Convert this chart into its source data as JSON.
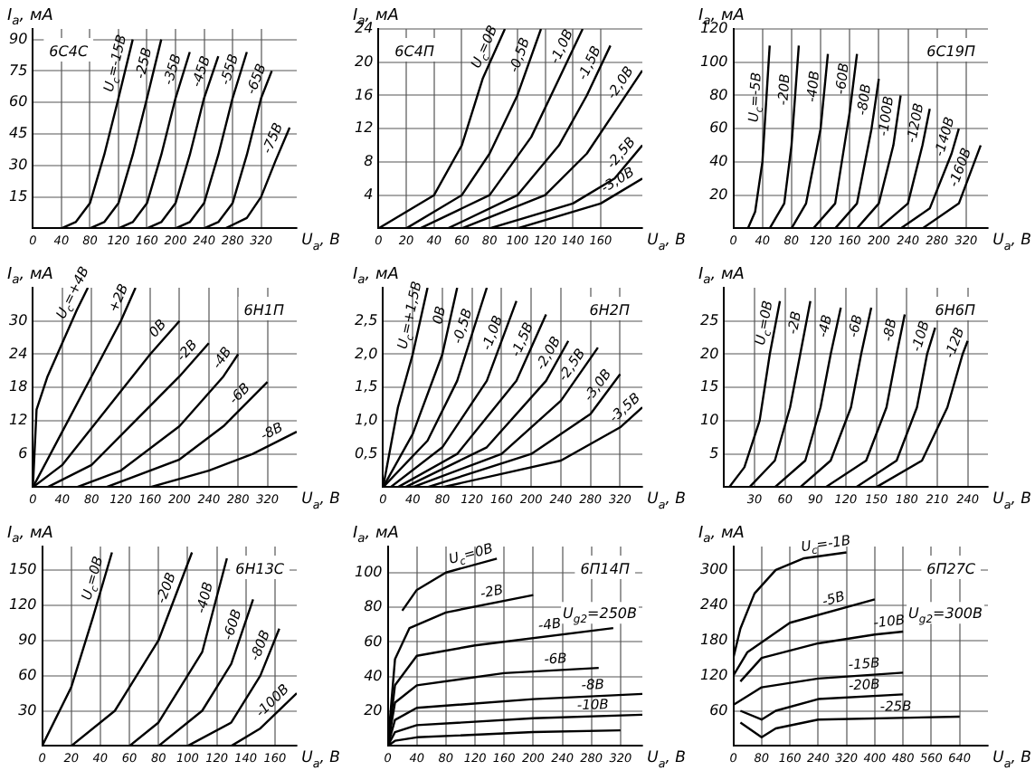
{
  "chart_data": [
    {
      "type": "line",
      "title": "6С4С",
      "xlabel": "U$_{a}$, В",
      "ylabel": "I$_{a}$, мА",
      "xlim": [
        0,
        370
      ],
      "xticks": [
        0,
        40,
        80,
        120,
        160,
        200,
        240,
        280,
        320
      ],
      "ylim": [
        0,
        95
      ],
      "yticks": [
        15,
        30,
        45,
        60,
        75,
        90
      ],
      "grid": true,
      "legend": false,
      "series": [
        {
          "name": "U$_{c}$=-15В",
          "color": "#000000",
          "x": [
            40,
            60,
            80,
            100,
            120,
            140
          ],
          "values": [
            0,
            3,
            12,
            35,
            62,
            90
          ]
        },
        {
          "name": "-25В",
          "color": "#000000",
          "x": [
            80,
            100,
            120,
            140,
            160,
            180
          ],
          "values": [
            0,
            3,
            12,
            35,
            62,
            90
          ]
        },
        {
          "name": "-35В",
          "color": "#000000",
          "x": [
            120,
            140,
            160,
            180,
            200,
            220
          ],
          "values": [
            0,
            3,
            12,
            35,
            62,
            84
          ]
        },
        {
          "name": "-45В",
          "color": "#000000",
          "x": [
            160,
            180,
            200,
            220,
            240,
            260
          ],
          "values": [
            0,
            3,
            12,
            35,
            62,
            82
          ]
        },
        {
          "name": "-55В",
          "color": "#000000",
          "x": [
            200,
            220,
            240,
            260,
            280,
            300
          ],
          "values": [
            0,
            3,
            12,
            35,
            62,
            84
          ]
        },
        {
          "name": "-65В",
          "color": "#000000",
          "x": [
            240,
            260,
            280,
            300,
            320,
            335
          ],
          "values": [
            0,
            3,
            12,
            35,
            62,
            75
          ]
        },
        {
          "name": "-75В",
          "color": "#000000",
          "x": [
            270,
            300,
            320,
            340,
            360
          ],
          "values": [
            0,
            5,
            15,
            32,
            48
          ]
        }
      ]
    },
    {
      "type": "line",
      "title": "6С4П",
      "xlabel": "U$_{a}$, В",
      "ylabel": "I$_{a}$, мА",
      "xlim": [
        0,
        190
      ],
      "xticks": [
        0,
        20,
        40,
        60,
        80,
        100,
        120,
        140,
        160
      ],
      "ylim": [
        0,
        24
      ],
      "yticks": [
        4,
        8,
        12,
        16,
        20,
        24
      ],
      "grid": true,
      "legend": false,
      "series": [
        {
          "name": "U$_{c}$=0В",
          "color": "#000000",
          "x": [
            0,
            40,
            60,
            75,
            91
          ],
          "values": [
            0,
            4,
            10,
            18,
            24
          ]
        },
        {
          "name": "-0,5В",
          "color": "#000000",
          "x": [
            20,
            60,
            80,
            100,
            117
          ],
          "values": [
            0,
            4,
            9,
            16,
            24
          ]
        },
        {
          "name": "-1,0В",
          "color": "#000000",
          "x": [
            30,
            80,
            110,
            130,
            147
          ],
          "values": [
            0,
            4,
            11,
            18,
            24
          ]
        },
        {
          "name": "-1,5В",
          "color": "#000000",
          "x": [
            50,
            100,
            130,
            150,
            167
          ],
          "values": [
            0,
            4,
            10,
            16,
            22
          ]
        },
        {
          "name": "-2,0В",
          "color": "#000000",
          "x": [
            60,
            120,
            150,
            170,
            190
          ],
          "values": [
            0,
            4,
            9,
            14,
            19
          ]
        },
        {
          "name": "-2,5В",
          "color": "#000000",
          "x": [
            80,
            140,
            170,
            190
          ],
          "values": [
            0,
            3,
            6,
            10
          ]
        },
        {
          "name": "-3,0В",
          "color": "#000000",
          "x": [
            100,
            160,
            190
          ],
          "values": [
            0,
            3,
            6
          ]
        }
      ]
    },
    {
      "type": "line",
      "title": "6С19П",
      "xlabel": "U$_{a}$, В",
      "ylabel": "I$_{a}$, мА",
      "xlim": [
        0,
        350
      ],
      "xticks": [
        0,
        40,
        80,
        120,
        160,
        200,
        240,
        280,
        320
      ],
      "ylim": [
        0,
        120
      ],
      "yticks": [
        20,
        40,
        60,
        80,
        100,
        120
      ],
      "grid": true,
      "legend": false,
      "series": [
        {
          "name": "U$_{c}$=-5В",
          "color": "#000000",
          "x": [
            20,
            30,
            40,
            50
          ],
          "values": [
            0,
            10,
            40,
            110
          ]
        },
        {
          "name": "-20В",
          "color": "#000000",
          "x": [
            50,
            70,
            80,
            90
          ],
          "values": [
            0,
            15,
            50,
            110
          ]
        },
        {
          "name": "-40В",
          "color": "#000000",
          "x": [
            80,
            100,
            120,
            130
          ],
          "values": [
            0,
            15,
            60,
            105
          ]
        },
        {
          "name": "-60В",
          "color": "#000000",
          "x": [
            110,
            140,
            160,
            170
          ],
          "values": [
            0,
            15,
            70,
            105
          ]
        },
        {
          "name": "-80В",
          "color": "#000000",
          "x": [
            140,
            170,
            190,
            200
          ],
          "values": [
            0,
            15,
            60,
            90
          ]
        },
        {
          "name": "-100В",
          "color": "#000000",
          "x": [
            170,
            200,
            220,
            230
          ],
          "values": [
            0,
            15,
            50,
            80
          ]
        },
        {
          "name": "-120В",
          "color": "#000000",
          "x": [
            200,
            240,
            260,
            270
          ],
          "values": [
            0,
            15,
            50,
            72
          ]
        },
        {
          "name": "-140В",
          "color": "#000000",
          "x": [
            230,
            270,
            300,
            310
          ],
          "values": [
            0,
            12,
            45,
            60
          ]
        },
        {
          "name": "-160В",
          "color": "#000000",
          "x": [
            260,
            310,
            340
          ],
          "values": [
            0,
            15,
            50
          ]
        }
      ]
    },
    {
      "type": "line",
      "title": "6Н1П",
      "xlabel": "U$_{a}$, В",
      "ylabel": "I$_{a}$, мА",
      "xlim": [
        0,
        360
      ],
      "xticks": [
        0,
        40,
        80,
        120,
        160,
        200,
        240,
        280,
        320
      ],
      "ylim": [
        0,
        36
      ],
      "yticks": [
        6,
        12,
        18,
        24,
        30
      ],
      "grid": true,
      "legend": false,
      "series": [
        {
          "name": "U$_{c}$=+4В",
          "color": "#000000",
          "x": [
            0,
            5,
            20,
            40,
            60,
            75
          ],
          "values": [
            0,
            14,
            20,
            26,
            32,
            36
          ]
        },
        {
          "name": "+2В",
          "color": "#000000",
          "x": [
            0,
            40,
            80,
            120,
            140
          ],
          "values": [
            0,
            10,
            20,
            30,
            36
          ]
        },
        {
          "name": "0В",
          "color": "#000000",
          "x": [
            0,
            40,
            100,
            160,
            200
          ],
          "values": [
            0,
            4,
            14,
            24,
            30
          ]
        },
        {
          "name": "-2В",
          "color": "#000000",
          "x": [
            20,
            80,
            140,
            200,
            240
          ],
          "values": [
            0,
            4,
            12,
            20,
            26
          ]
        },
        {
          "name": "-4В",
          "color": "#000000",
          "x": [
            60,
            120,
            200,
            260,
            280
          ],
          "values": [
            0,
            3,
            11,
            20,
            24
          ]
        },
        {
          "name": "-6В",
          "color": "#000000",
          "x": [
            100,
            200,
            260,
            320
          ],
          "values": [
            0,
            5,
            11,
            19
          ]
        },
        {
          "name": "-8В",
          "color": "#000000",
          "x": [
            160,
            240,
            300,
            360
          ],
          "values": [
            0,
            3,
            6,
            10
          ]
        }
      ]
    },
    {
      "type": "line",
      "title": "6Н2П",
      "xlabel": "U$_{a}$, В",
      "ylabel": "I$_{a}$, мА",
      "xlim": [
        0,
        350
      ],
      "xticks": [
        0,
        40,
        80,
        120,
        160,
        200,
        240,
        280,
        320
      ],
      "ylim": [
        0,
        3
      ],
      "yticks": [
        {
          "value": 0.5,
          "label": "0,5"
        },
        {
          "value": 1,
          "label": "1,0"
        },
        {
          "value": 1.5,
          "label": "1,5"
        },
        {
          "value": 2,
          "label": "2,0"
        },
        {
          "value": 2.5,
          "label": "2,5"
        }
      ],
      "grid": true,
      "legend": false,
      "series": [
        {
          "name": "U$_{c}$=+1,5В",
          "color": "#000000",
          "x": [
            0,
            20,
            40,
            60
          ],
          "values": [
            0,
            1.2,
            2,
            3
          ]
        },
        {
          "name": "0В",
          "color": "#000000",
          "x": [
            0,
            40,
            80,
            100
          ],
          "values": [
            0,
            0.8,
            2,
            3
          ]
        },
        {
          "name": "-0,5В",
          "color": "#000000",
          "x": [
            0,
            60,
            100,
            140
          ],
          "values": [
            0,
            0.7,
            1.6,
            3
          ]
        },
        {
          "name": "-1,0В",
          "color": "#000000",
          "x": [
            10,
            80,
            140,
            180
          ],
          "values": [
            0,
            0.6,
            1.6,
            2.8
          ]
        },
        {
          "name": "-1,5В",
          "color": "#000000",
          "x": [
            20,
            100,
            180,
            220
          ],
          "values": [
            0,
            0.5,
            1.6,
            2.6
          ]
        },
        {
          "name": "-2,0В",
          "color": "#000000",
          "x": [
            30,
            140,
            220,
            250
          ],
          "values": [
            0,
            0.6,
            1.6,
            2.2
          ]
        },
        {
          "name": "-2,5В",
          "color": "#000000",
          "x": [
            40,
            160,
            240,
            290
          ],
          "values": [
            0,
            0.5,
            1.3,
            2.1
          ]
        },
        {
          "name": "-3,0В",
          "color": "#000000",
          "x": [
            60,
            200,
            280,
            320
          ],
          "values": [
            0,
            0.5,
            1.1,
            1.7
          ]
        },
        {
          "name": "-3,5В",
          "color": "#000000",
          "x": [
            80,
            240,
            320,
            350
          ],
          "values": [
            0,
            0.4,
            0.9,
            1.2
          ]
        }
      ]
    },
    {
      "type": "line",
      "title": "6Н6П",
      "xlabel": "U$_{a}$, В",
      "ylabel": "I$_{a}$, мА",
      "xlim": [
        0,
        260
      ],
      "xticks": [
        30,
        60,
        90,
        120,
        150,
        180,
        210,
        240
      ],
      "ylim": [
        0,
        30
      ],
      "yticks": [
        5,
        10,
        15,
        20,
        25
      ],
      "grid": true,
      "legend": false,
      "series": [
        {
          "name": "U$_{c}$=0В",
          "color": "#000000",
          "x": [
            5,
            20,
            35,
            45,
            55
          ],
          "values": [
            0,
            3,
            10,
            20,
            28
          ]
        },
        {
          "name": "-2В",
          "color": "#000000",
          "x": [
            25,
            50,
            65,
            75,
            85
          ],
          "values": [
            0,
            4,
            12,
            20,
            28
          ]
        },
        {
          "name": "-4В",
          "color": "#000000",
          "x": [
            50,
            80,
            95,
            105,
            115
          ],
          "values": [
            0,
            4,
            12,
            20,
            27
          ]
        },
        {
          "name": "-6В",
          "color": "#000000",
          "x": [
            75,
            105,
            125,
            135,
            145
          ],
          "values": [
            0,
            4,
            12,
            20,
            27
          ]
        },
        {
          "name": "-8В",
          "color": "#000000",
          "x": [
            100,
            140,
            160,
            170,
            178
          ],
          "values": [
            0,
            4,
            12,
            20,
            26
          ]
        },
        {
          "name": "-10В",
          "color": "#000000",
          "x": [
            130,
            170,
            190,
            200,
            208
          ],
          "values": [
            0,
            4,
            12,
            20,
            24
          ]
        },
        {
          "name": "-12В",
          "color": "#000000",
          "x": [
            150,
            195,
            220,
            235,
            240
          ],
          "values": [
            0,
            4,
            12,
            20,
            22
          ]
        }
      ]
    },
    {
      "type": "line",
      "title": "6Н13С",
      "xlabel": "U$_{a}$, В",
      "ylabel": "I$_{a}$, мА",
      "xlim": [
        0,
        175
      ],
      "xticks": [
        0,
        20,
        40,
        60,
        80,
        100,
        120,
        140,
        160
      ],
      "ylim": [
        0,
        170
      ],
      "yticks": [
        30,
        60,
        90,
        120,
        150
      ],
      "grid": true,
      "legend": false,
      "series": [
        {
          "name": "U$_{c}$=0В",
          "color": "#000000",
          "x": [
            0,
            20,
            35,
            48
          ],
          "values": [
            0,
            50,
            110,
            165
          ]
        },
        {
          "name": "-20В",
          "color": "#000000",
          "x": [
            20,
            50,
            80,
            103
          ],
          "values": [
            0,
            30,
            90,
            165
          ]
        },
        {
          "name": "-40В",
          "color": "#000000",
          "x": [
            60,
            80,
            110,
            127
          ],
          "values": [
            0,
            20,
            80,
            160
          ]
        },
        {
          "name": "-60В",
          "color": "#000000",
          "x": [
            80,
            110,
            130,
            145
          ],
          "values": [
            0,
            30,
            70,
            125
          ]
        },
        {
          "name": "-80В",
          "color": "#000000",
          "x": [
            100,
            130,
            150,
            163
          ],
          "values": [
            0,
            20,
            60,
            100
          ]
        },
        {
          "name": "-100В",
          "color": "#000000",
          "x": [
            130,
            150,
            175
          ],
          "values": [
            0,
            15,
            45
          ]
        }
      ]
    },
    {
      "type": "line",
      "title": "6П14П",
      "xlabel": "U$_{a}$, В",
      "ylabel": "I$_{a}$, мА",
      "annotations": [
        "U$_{g2}$=250В"
      ],
      "xlim": [
        0,
        350
      ],
      "xticks": [
        0,
        40,
        80,
        120,
        160,
        200,
        240,
        280,
        320
      ],
      "ylim": [
        0,
        115
      ],
      "yticks": [
        20,
        40,
        60,
        80,
        100
      ],
      "grid": true,
      "legend": false,
      "series": [
        {
          "name": "U$_{c}$=0В",
          "color": "#000000",
          "x": [
            20,
            40,
            80,
            150
          ],
          "values": [
            78,
            90,
            100,
            108
          ]
        },
        {
          "name": "-2В",
          "color": "#000000",
          "x": [
            0,
            10,
            30,
            80,
            200
          ],
          "values": [
            0,
            50,
            68,
            77,
            87
          ]
        },
        {
          "name": "-4В",
          "color": "#000000",
          "x": [
            0,
            10,
            40,
            120,
            310
          ],
          "values": [
            0,
            35,
            52,
            58,
            68
          ]
        },
        {
          "name": "-6В",
          "color": "#000000",
          "x": [
            0,
            10,
            40,
            160,
            290
          ],
          "values": [
            0,
            25,
            35,
            42,
            45
          ]
        },
        {
          "name": "-8В",
          "color": "#000000",
          "x": [
            0,
            10,
            40,
            200,
            350
          ],
          "values": [
            0,
            15,
            22,
            27,
            30
          ]
        },
        {
          "name": "-10В",
          "color": "#000000",
          "x": [
            0,
            10,
            40,
            200,
            350
          ],
          "values": [
            0,
            8,
            12,
            16,
            18
          ]
        },
        {
          "color": "#000000",
          "x": [
            0,
            10,
            40,
            200,
            320
          ],
          "values": [
            0,
            3,
            5,
            8,
            9
          ]
        }
      ]
    },
    {
      "type": "line",
      "title": "6П27С",
      "xlabel": "U$_{a}$, В",
      "ylabel": "I$_{a}$, мА",
      "annotations": [
        "U$_{g2}$=300В"
      ],
      "xlim": [
        0,
        720
      ],
      "xticks": [
        0,
        80,
        160,
        240,
        320,
        400,
        480,
        560,
        640
      ],
      "ylim": [
        0,
        340
      ],
      "yticks": [
        60,
        120,
        180,
        240,
        300
      ],
      "grid": true,
      "legend": false,
      "series": [
        {
          "name": "U$_{c}$=-1В",
          "color": "#000000",
          "x": [
            0,
            20,
            60,
            120,
            200,
            320
          ],
          "values": [
            150,
            200,
            260,
            300,
            320,
            330
          ]
        },
        {
          "name": "-5В",
          "color": "#000000",
          "x": [
            0,
            40,
            160,
            400
          ],
          "values": [
            120,
            160,
            210,
            250
          ]
        },
        {
          "name": "-10В",
          "color": "#000000",
          "x": [
            20,
            80,
            240,
            400,
            480
          ],
          "values": [
            110,
            150,
            175,
            190,
            195
          ]
        },
        {
          "name": "-15В",
          "color": "#000000",
          "x": [
            0,
            80,
            240,
            480
          ],
          "values": [
            70,
            100,
            115,
            125
          ]
        },
        {
          "name": "-20В",
          "color": "#000000",
          "x": [
            20,
            80,
            120,
            240,
            480
          ],
          "values": [
            60,
            45,
            60,
            80,
            88
          ]
        },
        {
          "name": "-25В",
          "color": "#000000",
          "x": [
            20,
            80,
            120,
            240,
            640
          ],
          "values": [
            40,
            15,
            30,
            45,
            50
          ]
        }
      ]
    }
  ]
}
